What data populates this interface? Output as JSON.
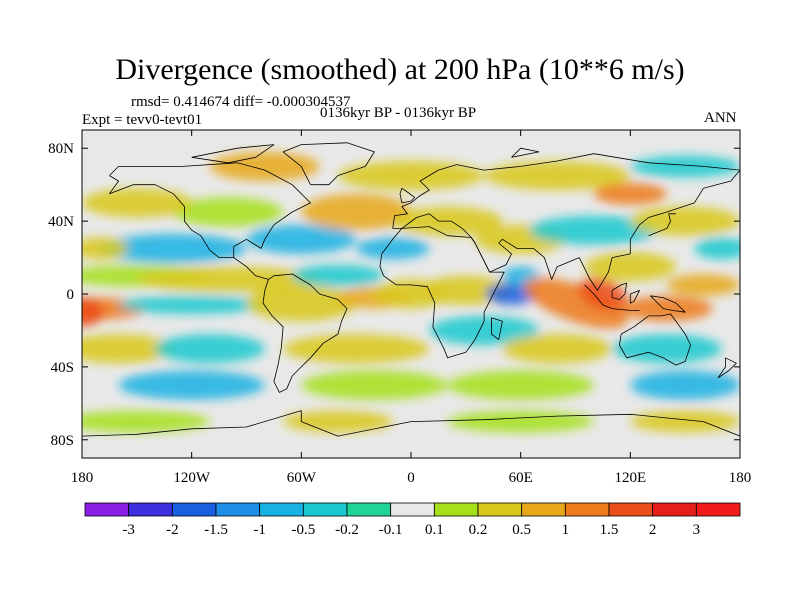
{
  "title": "Divergence (smoothed) at 200 hPa (10**6 m/s)",
  "stats_text": "rmsd= 0.414674 diff= -0.000304537",
  "period_text": "0136kyr BP - 0136kyr BP",
  "experiment_text": "Expt = tevv0-tevt01",
  "season_text": "ANN",
  "map": {
    "lat_ticks": [
      "80N",
      "40N",
      "0",
      "40S",
      "80S"
    ],
    "lat_tick_values": [
      80,
      40,
      0,
      -40,
      -80
    ],
    "lon_ticks": [
      "180",
      "120W",
      "60W",
      "0",
      "60E",
      "120E",
      "180"
    ],
    "lon_tick_values": [
      -180,
      -120,
      -60,
      0,
      60,
      120,
      180
    ],
    "lon_range": [
      -180,
      180
    ],
    "lat_range": [
      -90,
      90
    ]
  },
  "colorbar": {
    "labels": [
      "-3",
      "-2",
      "-1.5",
      "-1",
      "-0.5",
      "-0.2",
      "-0.1",
      "0.1",
      "0.2",
      "0.5",
      "1",
      "1.5",
      "2",
      "3"
    ],
    "colors": [
      "#8c1fe6",
      "#3c2fe0",
      "#1a5fe0",
      "#1e8ee6",
      "#17b1e3",
      "#19c9cf",
      "#1fd496",
      "#e8e8e8",
      "#a6e01a",
      "#d9c81a",
      "#e8a81a",
      "#ef7a19",
      "#ec4e19",
      "#e61e19",
      "#f21a1a"
    ]
  }
}
